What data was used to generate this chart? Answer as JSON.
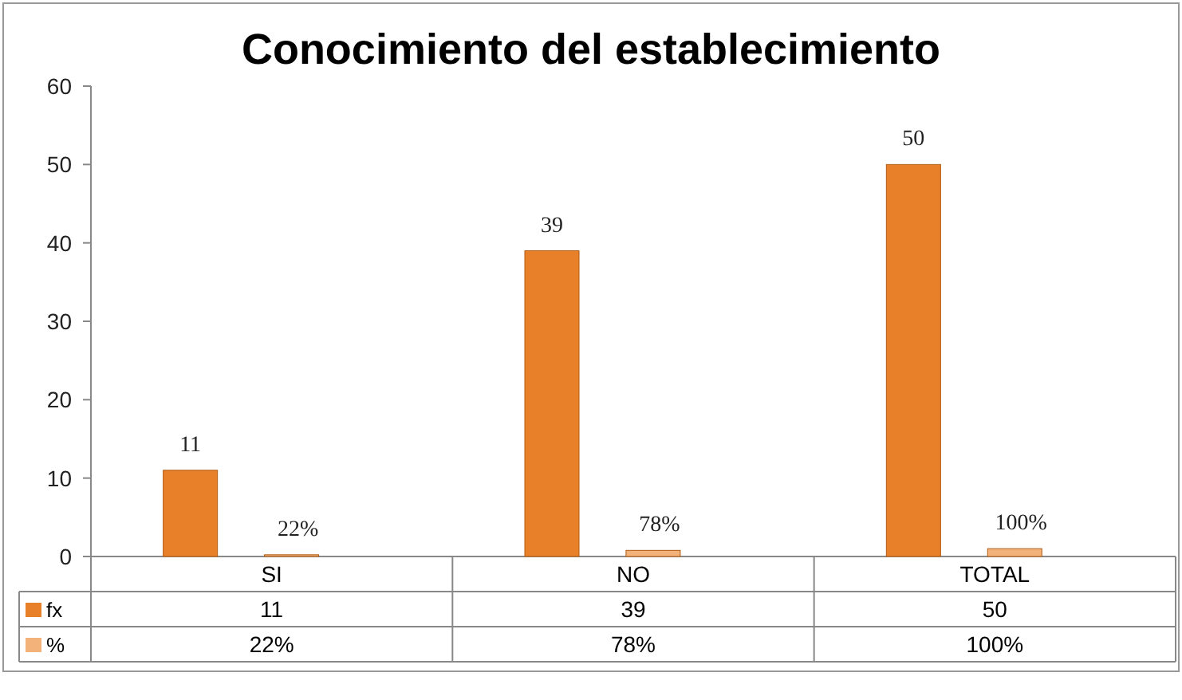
{
  "chart_data": {
    "type": "bar",
    "title": "Conocimiento del establecimiento",
    "categories": [
      "SI",
      "NO",
      "TOTAL"
    ],
    "series": [
      {
        "name": "fx",
        "color": "#e8802a",
        "values": [
          11,
          39,
          50
        ],
        "value_labels": [
          "11",
          "39",
          "50"
        ]
      },
      {
        "name": "%",
        "color": "#f2b27a",
        "values": [
          0.22,
          0.78,
          1
        ],
        "value_labels": [
          "22%",
          "78%",
          "100%"
        ]
      }
    ],
    "ylim": [
      0,
      60
    ],
    "yticks": [
      0,
      10,
      20,
      30,
      40,
      50,
      60
    ],
    "legend": "bottom"
  }
}
